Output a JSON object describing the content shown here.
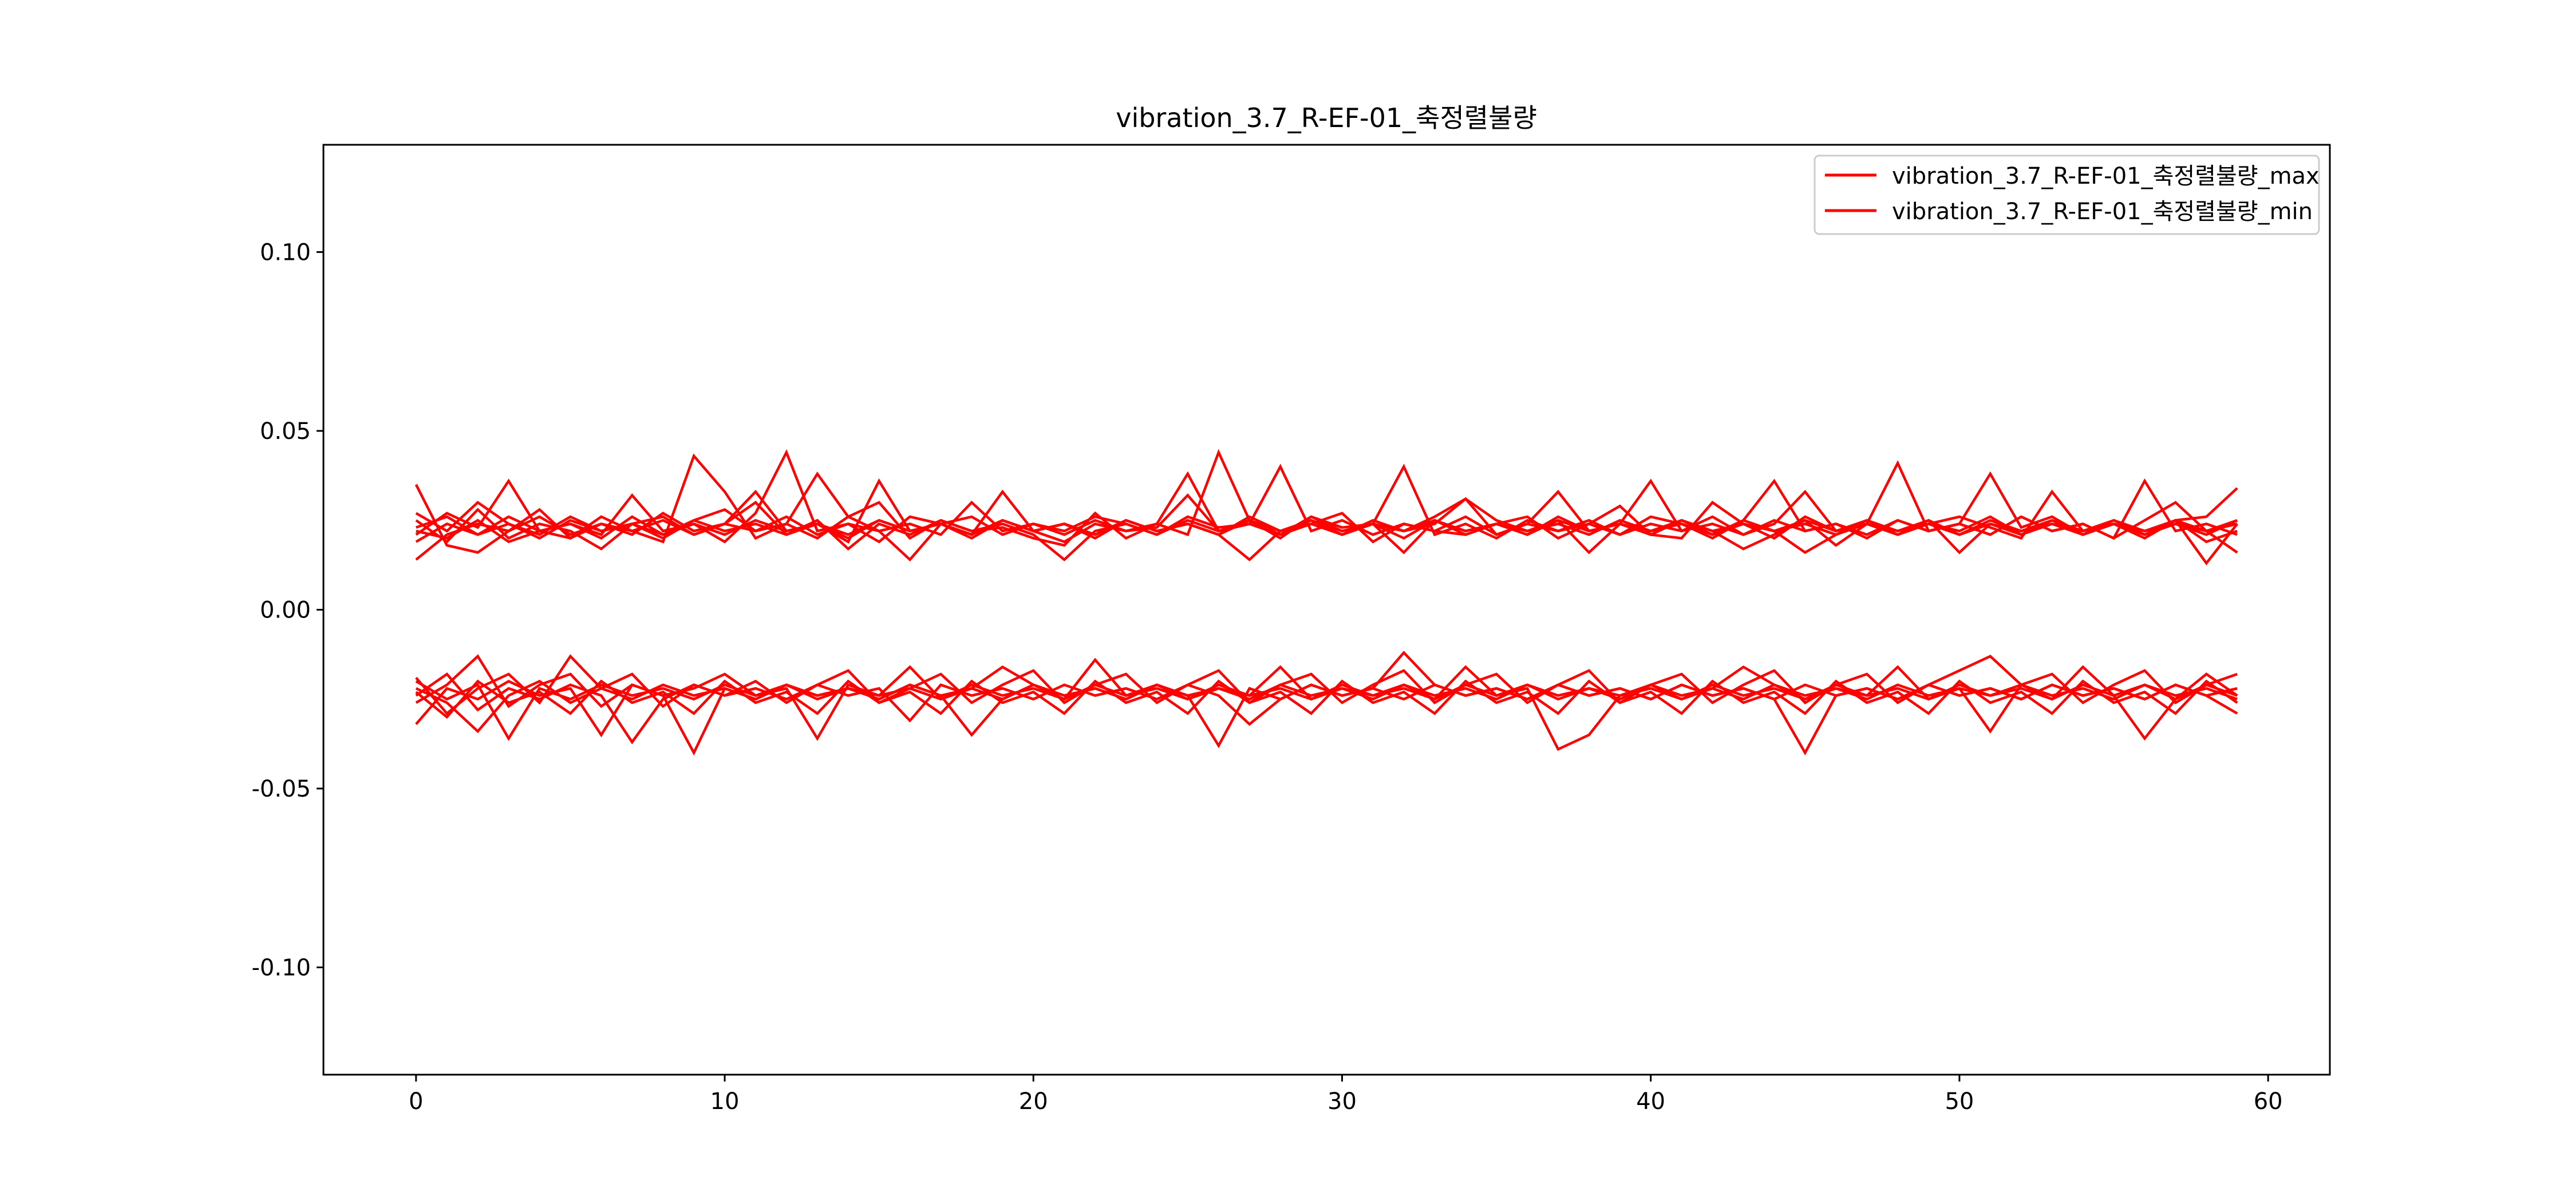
{
  "chart_data": {
    "type": "line",
    "title": "vibration_3.7_R-EF-01_축정렬불량",
    "xlabel": "",
    "ylabel": "",
    "xlim": [
      -3,
      62
    ],
    "ylim": [
      -0.13,
      0.13
    ],
    "x_ticks": [
      0,
      10,
      20,
      30,
      40,
      50,
      60
    ],
    "y_ticks": [
      -0.1,
      -0.05,
      0.0,
      0.05,
      0.1
    ],
    "x_tick_labels": [
      "0",
      "10",
      "20",
      "30",
      "40",
      "50",
      "60"
    ],
    "y_tick_labels": [
      "-0.10",
      "-0.05",
      "0.00",
      "0.05",
      "0.10"
    ],
    "grid": false,
    "legend": {
      "position": "upper right",
      "entries": [
        "vibration_3.7_R-EF-01_축정렬불량_max",
        "vibration_3.7_R-EF-01_축정렬불량_min"
      ]
    },
    "colors": {
      "series": "#ff0000",
      "axes": "#000000",
      "background": "#ffffff"
    },
    "x": [
      0,
      1,
      2,
      3,
      4,
      5,
      6,
      7,
      8,
      9,
      10,
      11,
      12,
      13,
      14,
      15,
      16,
      17,
      18,
      19,
      20,
      21,
      22,
      23,
      24,
      25,
      26,
      27,
      28,
      29,
      30,
      31,
      32,
      33,
      34,
      35,
      36,
      37,
      38,
      39,
      40,
      41,
      42,
      43,
      44,
      45,
      46,
      47,
      48,
      49,
      50,
      51,
      52,
      53,
      54,
      55,
      56,
      57,
      58,
      59
    ],
    "series": [
      {
        "group": "max",
        "values": [
          0.035,
          0.018,
          0.016,
          0.022,
          0.028,
          0.02,
          0.026,
          0.022,
          0.019,
          0.043,
          0.033,
          0.02,
          0.024,
          0.038,
          0.026,
          0.03,
          0.02,
          0.025,
          0.022,
          0.023,
          0.02,
          0.018,
          0.027,
          0.02,
          0.024,
          0.021,
          0.044,
          0.025,
          0.021,
          0.024,
          0.027,
          0.019,
          0.024,
          0.022,
          0.021,
          0.024,
          0.026,
          0.02,
          0.024,
          0.029,
          0.021,
          0.02,
          0.03,
          0.024,
          0.022,
          0.025,
          0.018,
          0.024,
          0.021,
          0.024,
          0.026,
          0.023,
          0.02,
          0.033,
          0.022,
          0.024,
          0.021,
          0.025,
          0.019,
          0.022
        ]
      },
      {
        "group": "max",
        "values": [
          0.022,
          0.02,
          0.025,
          0.019,
          0.022,
          0.024,
          0.02,
          0.026,
          0.021,
          0.024,
          0.019,
          0.027,
          0.044,
          0.022,
          0.024,
          0.019,
          0.026,
          0.024,
          0.021,
          0.025,
          0.022,
          0.019,
          0.024,
          0.022,
          0.023,
          0.032,
          0.022,
          0.025,
          0.02,
          0.026,
          0.022,
          0.024,
          0.04,
          0.021,
          0.024,
          0.02,
          0.025,
          0.022,
          0.024,
          0.021,
          0.026,
          0.024,
          0.02,
          0.025,
          0.036,
          0.022,
          0.024,
          0.021,
          0.025,
          0.022,
          0.024,
          0.038,
          0.023,
          0.026,
          0.021,
          0.024,
          0.02,
          0.025,
          0.026,
          0.034
        ]
      },
      {
        "group": "max",
        "values": [
          0.019,
          0.024,
          0.021,
          0.026,
          0.022,
          0.02,
          0.024,
          0.021,
          0.027,
          0.022,
          0.024,
          0.03,
          0.021,
          0.024,
          0.019,
          0.036,
          0.022,
          0.024,
          0.026,
          0.021,
          0.024,
          0.022,
          0.026,
          0.024,
          0.021,
          0.026,
          0.023,
          0.024,
          0.04,
          0.022,
          0.025,
          0.021,
          0.024,
          0.022,
          0.026,
          0.021,
          0.024,
          0.033,
          0.022,
          0.024,
          0.021,
          0.025,
          0.022,
          0.024,
          0.02,
          0.026,
          0.022,
          0.024,
          0.041,
          0.022,
          0.024,
          0.021,
          0.026,
          0.022,
          0.024,
          0.02,
          0.025,
          0.03,
          0.022,
          0.024
        ]
      },
      {
        "group": "max",
        "values": [
          0.027,
          0.022,
          0.03,
          0.024,
          0.021,
          0.026,
          0.022,
          0.024,
          0.02,
          0.025,
          0.028,
          0.022,
          0.024,
          0.02,
          0.026,
          0.022,
          0.024,
          0.021,
          0.03,
          0.022,
          0.024,
          0.021,
          0.025,
          0.022,
          0.024,
          0.038,
          0.022,
          0.024,
          0.021,
          0.026,
          0.023,
          0.024,
          0.02,
          0.025,
          0.022,
          0.024,
          0.021,
          0.026,
          0.022,
          0.024,
          0.036,
          0.022,
          0.024,
          0.021,
          0.025,
          0.022,
          0.024,
          0.02,
          0.025,
          0.022,
          0.024,
          0.021,
          0.026,
          0.022,
          0.024,
          0.02,
          0.036,
          0.022,
          0.024,
          0.021
        ]
      },
      {
        "group": "max",
        "values": [
          0.023,
          0.026,
          0.021,
          0.024,
          0.02,
          0.025,
          0.022,
          0.024,
          0.026,
          0.021,
          0.024,
          0.022,
          0.026,
          0.021,
          0.024,
          0.022,
          0.014,
          0.024,
          0.021,
          0.025,
          0.022,
          0.024,
          0.02,
          0.025,
          0.022,
          0.024,
          0.021,
          0.026,
          0.022,
          0.025,
          0.021,
          0.024,
          0.022,
          0.026,
          0.031,
          0.021,
          0.024,
          0.022,
          0.025,
          0.021,
          0.024,
          0.022,
          0.026,
          0.021,
          0.024,
          0.033,
          0.022,
          0.025,
          0.021,
          0.024,
          0.022,
          0.026,
          0.021,
          0.024,
          0.022,
          0.025,
          0.021,
          0.024,
          0.022,
          0.025
        ]
      },
      {
        "group": "max",
        "values": [
          0.014,
          0.021,
          0.024,
          0.022,
          0.026,
          0.021,
          0.024,
          0.022,
          0.025,
          0.021,
          0.024,
          0.033,
          0.022,
          0.024,
          0.021,
          0.025,
          0.022,
          0.024,
          0.02,
          0.025,
          0.022,
          0.024,
          0.021,
          0.025,
          0.022,
          0.024,
          0.021,
          0.014,
          0.022,
          0.025,
          0.021,
          0.024,
          0.022,
          0.025,
          0.021,
          0.024,
          0.022,
          0.025,
          0.016,
          0.024,
          0.022,
          0.025,
          0.021,
          0.024,
          0.022,
          0.016,
          0.021,
          0.024,
          0.022,
          0.025,
          0.021,
          0.024,
          0.022,
          0.025,
          0.021,
          0.024,
          0.022,
          0.025,
          0.013,
          0.024
        ]
      },
      {
        "group": "max",
        "values": [
          0.025,
          0.019,
          0.028,
          0.02,
          0.024,
          0.022,
          0.017,
          0.024,
          0.021,
          0.025,
          0.022,
          0.024,
          0.021,
          0.025,
          0.017,
          0.024,
          0.021,
          0.025,
          0.022,
          0.024,
          0.021,
          0.014,
          0.022,
          0.024,
          0.021,
          0.025,
          0.022,
          0.024,
          0.021,
          0.025,
          0.022,
          0.024,
          0.016,
          0.025,
          0.022,
          0.024,
          0.021,
          0.025,
          0.022,
          0.024,
          0.021,
          0.025,
          0.022,
          0.017,
          0.021,
          0.025,
          0.022,
          0.024,
          0.021,
          0.025,
          0.016,
          0.024,
          0.021,
          0.025,
          0.022,
          0.024,
          0.021,
          0.025,
          0.022,
          0.016
        ]
      },
      {
        "group": "max",
        "values": [
          0.021,
          0.027,
          0.023,
          0.036,
          0.022,
          0.024,
          0.021,
          0.032,
          0.022,
          0.024,
          0.021,
          0.025,
          0.022,
          0.024,
          0.02,
          0.025,
          0.022,
          0.024,
          0.021,
          0.033,
          0.022,
          0.024,
          0.021,
          0.025,
          0.022,
          0.024,
          0.021,
          0.025,
          0.022,
          0.024,
          0.021,
          0.025,
          0.022,
          0.024,
          0.031,
          0.025,
          0.022,
          0.024,
          0.021,
          0.025,
          0.022,
          0.024,
          0.021,
          0.025,
          0.022,
          0.024,
          0.021,
          0.025,
          0.022,
          0.024,
          0.021,
          0.025,
          0.022,
          0.024,
          0.021,
          0.025,
          0.022,
          0.024,
          0.021,
          0.025
        ]
      },
      {
        "group": "min",
        "values": [
          -0.032,
          -0.022,
          -0.025,
          -0.02,
          -0.024,
          -0.022,
          -0.035,
          -0.021,
          -0.024,
          -0.04,
          -0.022,
          -0.025,
          -0.021,
          -0.024,
          -0.022,
          -0.025,
          -0.021,
          -0.024,
          -0.022,
          -0.025,
          -0.021,
          -0.024,
          -0.022,
          -0.025,
          -0.021,
          -0.024,
          -0.038,
          -0.022,
          -0.025,
          -0.021,
          -0.024,
          -0.022,
          -0.012,
          -0.021,
          -0.024,
          -0.022,
          -0.025,
          -0.021,
          -0.024,
          -0.022,
          -0.025,
          -0.021,
          -0.024,
          -0.022,
          -0.025,
          -0.04,
          -0.024,
          -0.022,
          -0.025,
          -0.021,
          -0.024,
          -0.022,
          -0.025,
          -0.021,
          -0.024,
          -0.022,
          -0.025,
          -0.021,
          -0.024,
          -0.022
        ]
      },
      {
        "group": "min",
        "values": [
          -0.02,
          -0.025,
          -0.021,
          -0.036,
          -0.022,
          -0.025,
          -0.021,
          -0.024,
          -0.022,
          -0.025,
          -0.021,
          -0.024,
          -0.022,
          -0.036,
          -0.021,
          -0.024,
          -0.022,
          -0.025,
          -0.021,
          -0.024,
          -0.022,
          -0.025,
          -0.021,
          -0.024,
          -0.022,
          -0.025,
          -0.021,
          -0.024,
          -0.022,
          -0.025,
          -0.021,
          -0.024,
          -0.022,
          -0.025,
          -0.021,
          -0.024,
          -0.022,
          -0.039,
          -0.035,
          -0.024,
          -0.022,
          -0.025,
          -0.021,
          -0.024,
          -0.022,
          -0.025,
          -0.021,
          -0.024,
          -0.022,
          -0.025,
          -0.021,
          -0.024,
          -0.022,
          -0.025,
          -0.021,
          -0.024,
          -0.036,
          -0.025,
          -0.021,
          -0.024
        ]
      },
      {
        "group": "min",
        "values": [
          -0.024,
          -0.018,
          -0.028,
          -0.022,
          -0.025,
          -0.021,
          -0.024,
          -0.037,
          -0.025,
          -0.021,
          -0.024,
          -0.022,
          -0.025,
          -0.021,
          -0.024,
          -0.022,
          -0.031,
          -0.021,
          -0.024,
          -0.022,
          -0.025,
          -0.021,
          -0.024,
          -0.022,
          -0.025,
          -0.021,
          -0.024,
          -0.032,
          -0.025,
          -0.021,
          -0.024,
          -0.022,
          -0.025,
          -0.021,
          -0.024,
          -0.022,
          -0.025,
          -0.021,
          -0.024,
          -0.022,
          -0.025,
          -0.021,
          -0.024,
          -0.022,
          -0.025,
          -0.021,
          -0.024,
          -0.022,
          -0.025,
          -0.021,
          -0.024,
          -0.022,
          -0.025,
          -0.021,
          -0.024,
          -0.022,
          -0.025,
          -0.021,
          -0.024,
          -0.029
        ]
      },
      {
        "group": "min",
        "values": [
          -0.022,
          -0.026,
          -0.034,
          -0.024,
          -0.02,
          -0.026,
          -0.022,
          -0.025,
          -0.021,
          -0.024,
          -0.022,
          -0.025,
          -0.021,
          -0.024,
          -0.022,
          -0.025,
          -0.021,
          -0.024,
          -0.035,
          -0.025,
          -0.021,
          -0.024,
          -0.022,
          -0.025,
          -0.021,
          -0.024,
          -0.022,
          -0.025,
          -0.021,
          -0.024,
          -0.022,
          -0.025,
          -0.021,
          -0.024,
          -0.022,
          -0.025,
          -0.021,
          -0.024,
          -0.022,
          -0.025,
          -0.021,
          -0.024,
          -0.022,
          -0.025,
          -0.021,
          -0.024,
          -0.022,
          -0.025,
          -0.021,
          -0.024,
          -0.022,
          -0.034,
          -0.021,
          -0.024,
          -0.022,
          -0.025,
          -0.021,
          -0.024,
          -0.022,
          -0.025
        ]
      },
      {
        "group": "min",
        "values": [
          -0.026,
          -0.021,
          -0.013,
          -0.027,
          -0.021,
          -0.018,
          -0.027,
          -0.021,
          -0.024,
          -0.022,
          -0.018,
          -0.024,
          -0.021,
          -0.025,
          -0.022,
          -0.024,
          -0.016,
          -0.025,
          -0.022,
          -0.016,
          -0.021,
          -0.025,
          -0.014,
          -0.024,
          -0.021,
          -0.025,
          -0.022,
          -0.024,
          -0.016,
          -0.025,
          -0.022,
          -0.024,
          -0.021,
          -0.025,
          -0.016,
          -0.024,
          -0.021,
          -0.025,
          -0.022,
          -0.024,
          -0.021,
          -0.025,
          -0.022,
          -0.016,
          -0.021,
          -0.025,
          -0.022,
          -0.024,
          -0.016,
          -0.025,
          -0.022,
          -0.024,
          -0.021,
          -0.025,
          -0.016,
          -0.024,
          -0.021,
          -0.025,
          -0.018,
          -0.024
        ]
      },
      {
        "group": "min",
        "values": [
          -0.019,
          -0.029,
          -0.022,
          -0.018,
          -0.026,
          -0.013,
          -0.022,
          -0.018,
          -0.027,
          -0.021,
          -0.024,
          -0.02,
          -0.026,
          -0.021,
          -0.017,
          -0.026,
          -0.022,
          -0.018,
          -0.026,
          -0.021,
          -0.017,
          -0.026,
          -0.021,
          -0.018,
          -0.026,
          -0.021,
          -0.017,
          -0.026,
          -0.021,
          -0.018,
          -0.026,
          -0.021,
          -0.017,
          -0.026,
          -0.021,
          -0.018,
          -0.026,
          -0.021,
          -0.017,
          -0.026,
          -0.021,
          -0.018,
          -0.026,
          -0.021,
          -0.017,
          -0.026,
          -0.021,
          -0.018,
          -0.026,
          -0.021,
          -0.017,
          -0.013,
          -0.021,
          -0.018,
          -0.026,
          -0.021,
          -0.017,
          -0.026,
          -0.021,
          -0.018
        ]
      },
      {
        "group": "min",
        "values": [
          -0.023,
          -0.03,
          -0.02,
          -0.026,
          -0.023,
          -0.029,
          -0.02,
          -0.026,
          -0.023,
          -0.029,
          -0.02,
          -0.026,
          -0.023,
          -0.029,
          -0.02,
          -0.026,
          -0.023,
          -0.029,
          -0.02,
          -0.026,
          -0.023,
          -0.029,
          -0.02,
          -0.026,
          -0.023,
          -0.029,
          -0.02,
          -0.026,
          -0.023,
          -0.029,
          -0.02,
          -0.026,
          -0.023,
          -0.029,
          -0.02,
          -0.026,
          -0.023,
          -0.029,
          -0.02,
          -0.026,
          -0.023,
          -0.029,
          -0.02,
          -0.026,
          -0.023,
          -0.029,
          -0.02,
          -0.026,
          -0.023,
          -0.029,
          -0.02,
          -0.026,
          -0.023,
          -0.029,
          -0.02,
          -0.026,
          -0.023,
          -0.029,
          -0.02,
          -0.026
        ]
      }
    ]
  }
}
